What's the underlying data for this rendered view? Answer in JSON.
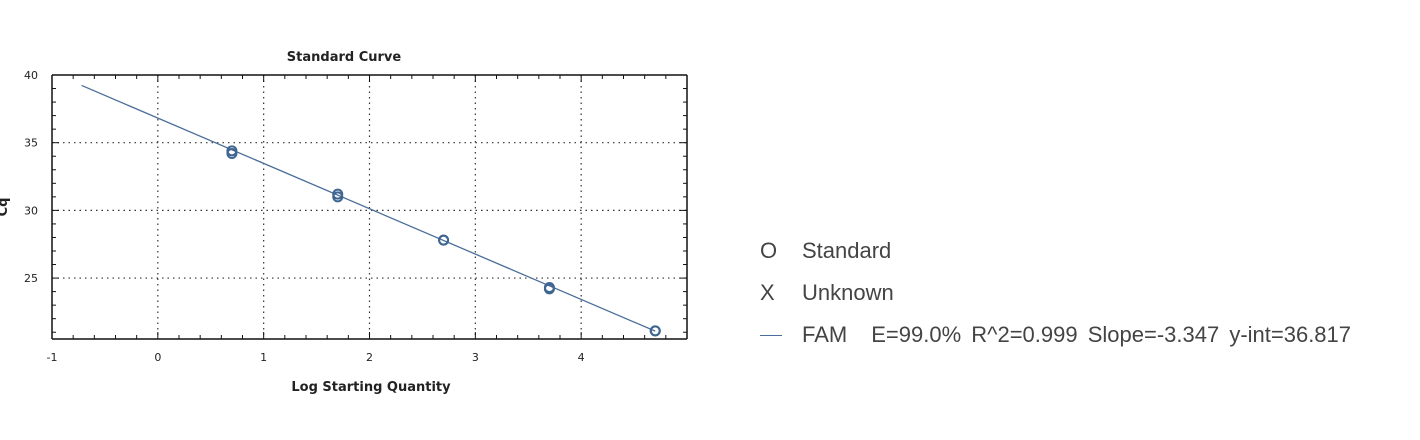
{
  "chart_data": {
    "type": "scatter",
    "title": "Standard Curve",
    "xlabel": "Log Starting Quantity",
    "ylabel": "Cq",
    "xlim": [
      -1,
      5
    ],
    "ylim": [
      20.5,
      40
    ],
    "xticks": [
      -1,
      0,
      1,
      2,
      3,
      4
    ],
    "yticks": [
      25,
      30,
      35,
      40
    ],
    "grid": true,
    "series": [
      {
        "name": "Standard",
        "marker": "circle",
        "x": [
          0.7,
          0.7,
          1.7,
          1.7,
          2.7,
          2.7,
          3.7,
          3.7,
          4.7,
          4.7
        ],
        "y": [
          34.4,
          34.2,
          31.2,
          31.0,
          27.8,
          27.8,
          24.3,
          24.2,
          21.1,
          21.1
        ]
      },
      {
        "name": "FAM",
        "type": "line",
        "x": [
          -0.72,
          4.7
        ],
        "y": [
          39.23,
          21.08
        ]
      }
    ],
    "fit": {
      "efficiency": "99.0%",
      "r2": 0.999,
      "slope": -3.347,
      "y_intercept": 36.817
    },
    "colors": {
      "series": "#3e6691",
      "line": "#4a6d9a",
      "grid": "#333333"
    },
    "legend_position": "right"
  },
  "legend": {
    "standard_symbol": "O",
    "standard_label": "Standard",
    "unknown_symbol": "X",
    "unknown_label": "Unknown",
    "fam_label": "FAM",
    "fam_stats": "E=99.0%  R^2=0.999  Slope=-3.347  y-int=36.817"
  }
}
